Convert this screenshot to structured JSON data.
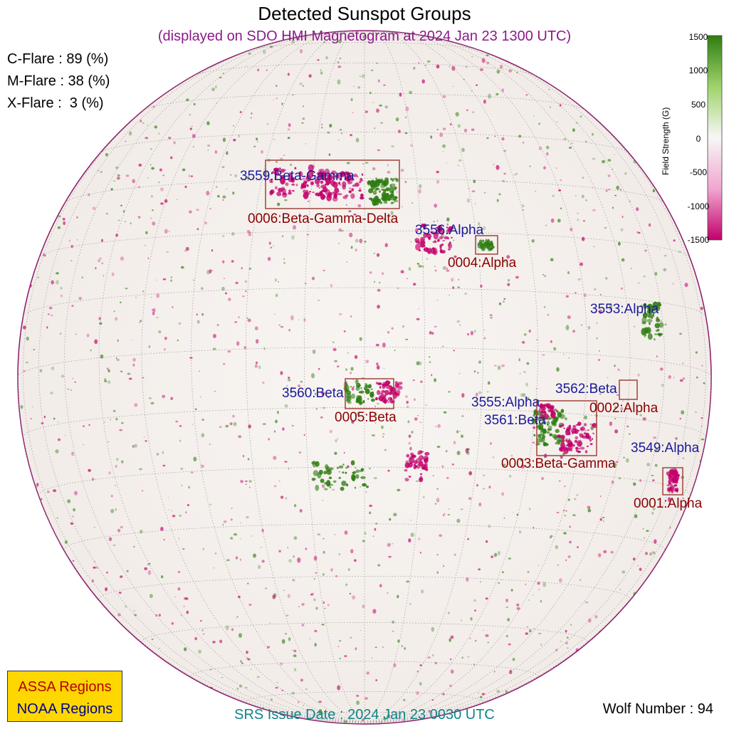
{
  "header": {
    "title": "Detected Sunspot Groups",
    "subtitle": "(displayed on SDO HMI Magnetogram at 2024 Jan 23 1300 UTC)"
  },
  "flares": {
    "c": "C-Flare : 89 (%)",
    "m": "M-Flare : 38 (%)",
    "x": "X-Flare :  3 (%)"
  },
  "colorbar": {
    "title": "Field Strength (G)",
    "ticks": [
      "1500",
      "1000",
      "500",
      "0",
      "-500",
      "-1000",
      "-1500"
    ],
    "colors": {
      "positive": "#2e7d12",
      "zero": "#f7f7f7",
      "negative": "#c2006b"
    }
  },
  "noaa_regions": [
    {
      "id": "3559",
      "text": "3559:Beta-Gamma"
    },
    {
      "id": "3556",
      "text": "3556:Alpha"
    },
    {
      "id": "3553",
      "text": "3553:Alpha"
    },
    {
      "id": "3560",
      "text": "3560:Beta"
    },
    {
      "id": "3562",
      "text": "3562:Beta"
    },
    {
      "id": "3555",
      "text": "3555:Alpha"
    },
    {
      "id": "3561",
      "text": "3561:Beta"
    },
    {
      "id": "3549",
      "text": "3549:Alpha"
    }
  ],
  "assa_regions": [
    {
      "id": "0006",
      "text": "0006:Beta-Gamma-Delta"
    },
    {
      "id": "0004",
      "text": "0004:Alpha"
    },
    {
      "id": "0005",
      "text": "0005:Beta"
    },
    {
      "id": "0002",
      "text": "0002:Alpha"
    },
    {
      "id": "0003",
      "text": "0003:Beta-Gamma"
    },
    {
      "id": "0001",
      "text": "0001:Alpha"
    }
  ],
  "legend": {
    "assa": "ASSA Regions",
    "noaa": "NOAA Regions"
  },
  "footer": {
    "srs": "SRS Issue Date : 2024 Jan 23 0030 UTC",
    "wolf": "Wolf Number : 94"
  }
}
